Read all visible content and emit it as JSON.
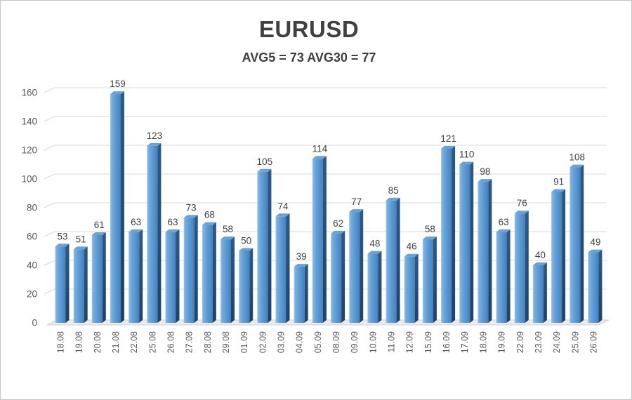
{
  "chart_data": {
    "type": "bar",
    "style": "excel-3d-column",
    "title": "EURUSD",
    "subtitle": "AVG5 = 73 AVG30 = 77",
    "categories": [
      "18.08",
      "19.08",
      "20.08",
      "21.08",
      "22.08",
      "25.08",
      "26.08",
      "27.08",
      "28.08",
      "29.08",
      "01.09",
      "02.09",
      "03.09",
      "04.09",
      "05.09",
      "08.09",
      "09.09",
      "10.09",
      "11.09",
      "12.09",
      "15.09",
      "16.09",
      "17.09",
      "18.09",
      "19.09",
      "22.09",
      "23.09",
      "24.09",
      "25.09",
      "26.09"
    ],
    "values": [
      53,
      51,
      61,
      159,
      63,
      123,
      63,
      73,
      68,
      58,
      50,
      105,
      74,
      39,
      114,
      62,
      77,
      48,
      85,
      46,
      58,
      121,
      110,
      98,
      63,
      76,
      40,
      91,
      108,
      49
    ],
    "ylim": [
      0,
      160
    ],
    "yticks": [
      0,
      20,
      40,
      60,
      80,
      100,
      120,
      140,
      160
    ],
    "grid": true,
    "legend": "none",
    "xlabel": "",
    "ylabel": "",
    "colors": {
      "bar_front_light": "#9cc3e8",
      "bar_front_mid": "#5b9bd5",
      "bar_front_shade": "#437aab",
      "bar_side_dark_top": "#2c5a8a",
      "bar_side_dark_bottom": "#1f4268",
      "bar_top_face": "#68a1d4",
      "gridline": "#d8d8d8",
      "floor_fill": "#ececec",
      "floor_edge": "#d0d0d0",
      "value_label": "#3f3f3f",
      "axis_label": "#55565a",
      "title_color": "#404040",
      "background": "#ffffff",
      "frame_border": "#c6c6c6"
    }
  }
}
